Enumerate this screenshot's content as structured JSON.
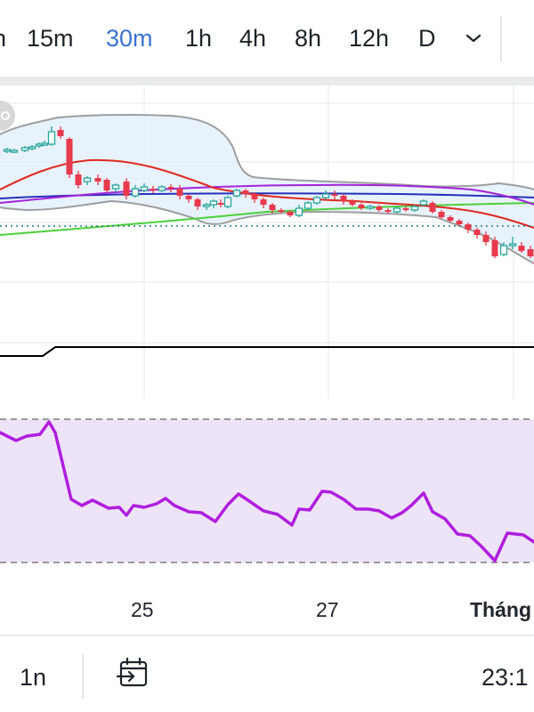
{
  "timeframes": {
    "items": [
      {
        "label": "h",
        "active": false
      },
      {
        "label": "15m",
        "active": false
      },
      {
        "label": "30m",
        "active": true
      },
      {
        "label": "1h",
        "active": false
      },
      {
        "label": "4h",
        "active": false
      },
      {
        "label": "8h",
        "active": false
      },
      {
        "label": "12h",
        "active": false
      },
      {
        "label": "D",
        "active": false
      }
    ],
    "more_icon": "chevron-down-icon"
  },
  "chart": {
    "x_labels": [
      "25",
      "27",
      "Tháng"
    ],
    "colors": {
      "up": "#26a69a",
      "down": "#e8394d",
      "bollinger_band": "#9e9e9e",
      "bollinger_fill": "#e3f0fb",
      "ma_red": "#e0291f",
      "ma_blue": "#2631b8",
      "ma_purple": "#a325d9",
      "ma_green": "#4ccf3a",
      "price_line": "#1f7a8a",
      "step_line": "#000000",
      "oscillator_line": "#b01ee0",
      "oscillator_fill": "#ede4f7"
    },
    "overlay_icon": "chart-settings-icon"
  },
  "bottom_bar": {
    "range_label": "1n",
    "goto_date_icon": "calendar-arrow-icon",
    "clock_text": "23:1"
  }
}
